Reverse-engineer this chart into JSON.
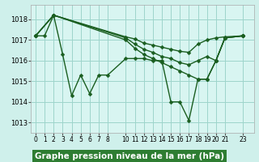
{
  "bg_color": "#cff0eb",
  "plot_bg": "#d8f5f1",
  "grid_color": "#9ed4cb",
  "line_color": "#1a5e20",
  "marker": "D",
  "markersize": 2.5,
  "linewidth": 1.0,
  "xlabel": "Graphe pression niveau de la mer (hPa)",
  "xlabel_fontsize": 7.5,
  "xlabel_bg": "#2e7d32",
  "xlabel_fg": "#ffffff",
  "ylim": [
    1012.5,
    1018.7
  ],
  "yticks": [
    1013,
    1014,
    1015,
    1016,
    1017,
    1018
  ],
  "xticks": [
    0,
    1,
    2,
    3,
    4,
    5,
    6,
    7,
    8,
    10,
    11,
    12,
    13,
    14,
    15,
    16,
    17,
    18,
    19,
    20,
    21,
    23
  ],
  "series": [
    {
      "x": [
        0,
        1,
        2,
        3,
        4,
        5,
        6,
        7,
        8,
        10,
        11,
        12,
        13,
        14,
        15,
        16,
        17,
        18,
        19,
        20,
        21,
        23
      ],
      "y": [
        1017.2,
        1017.2,
        1018.2,
        1016.3,
        1014.3,
        1015.3,
        1014.4,
        1015.3,
        1015.3,
        1016.1,
        1016.1,
        1016.1,
        1016.0,
        1016.0,
        1014.0,
        1014.0,
        1013.1,
        1015.1,
        1015.1,
        1016.0,
        1017.1,
        1017.2
      ]
    },
    {
      "x": [
        0,
        2,
        10,
        11,
        12,
        13,
        14,
        15,
        16,
        17,
        18,
        19,
        20,
        21,
        23
      ],
      "y": [
        1017.2,
        1018.2,
        1017.15,
        1017.05,
        1016.85,
        1016.75,
        1016.65,
        1016.55,
        1016.45,
        1016.4,
        1016.8,
        1017.0,
        1017.1,
        1017.15,
        1017.2
      ]
    },
    {
      "x": [
        0,
        2,
        10,
        11,
        12,
        13,
        14,
        15,
        16,
        17,
        18,
        19,
        20,
        21,
        23
      ],
      "y": [
        1017.2,
        1018.2,
        1017.1,
        1016.8,
        1016.55,
        1016.4,
        1016.2,
        1016.1,
        1015.9,
        1015.8,
        1016.0,
        1016.2,
        1016.0,
        1017.1,
        1017.2
      ]
    },
    {
      "x": [
        0,
        2,
        10,
        11,
        12,
        13,
        14,
        15,
        16,
        17,
        18,
        19,
        20,
        21,
        23
      ],
      "y": [
        1017.2,
        1018.2,
        1017.0,
        1016.6,
        1016.3,
        1016.1,
        1015.9,
        1015.7,
        1015.5,
        1015.3,
        1015.1,
        1015.1,
        1016.0,
        1017.1,
        1017.2
      ]
    }
  ]
}
